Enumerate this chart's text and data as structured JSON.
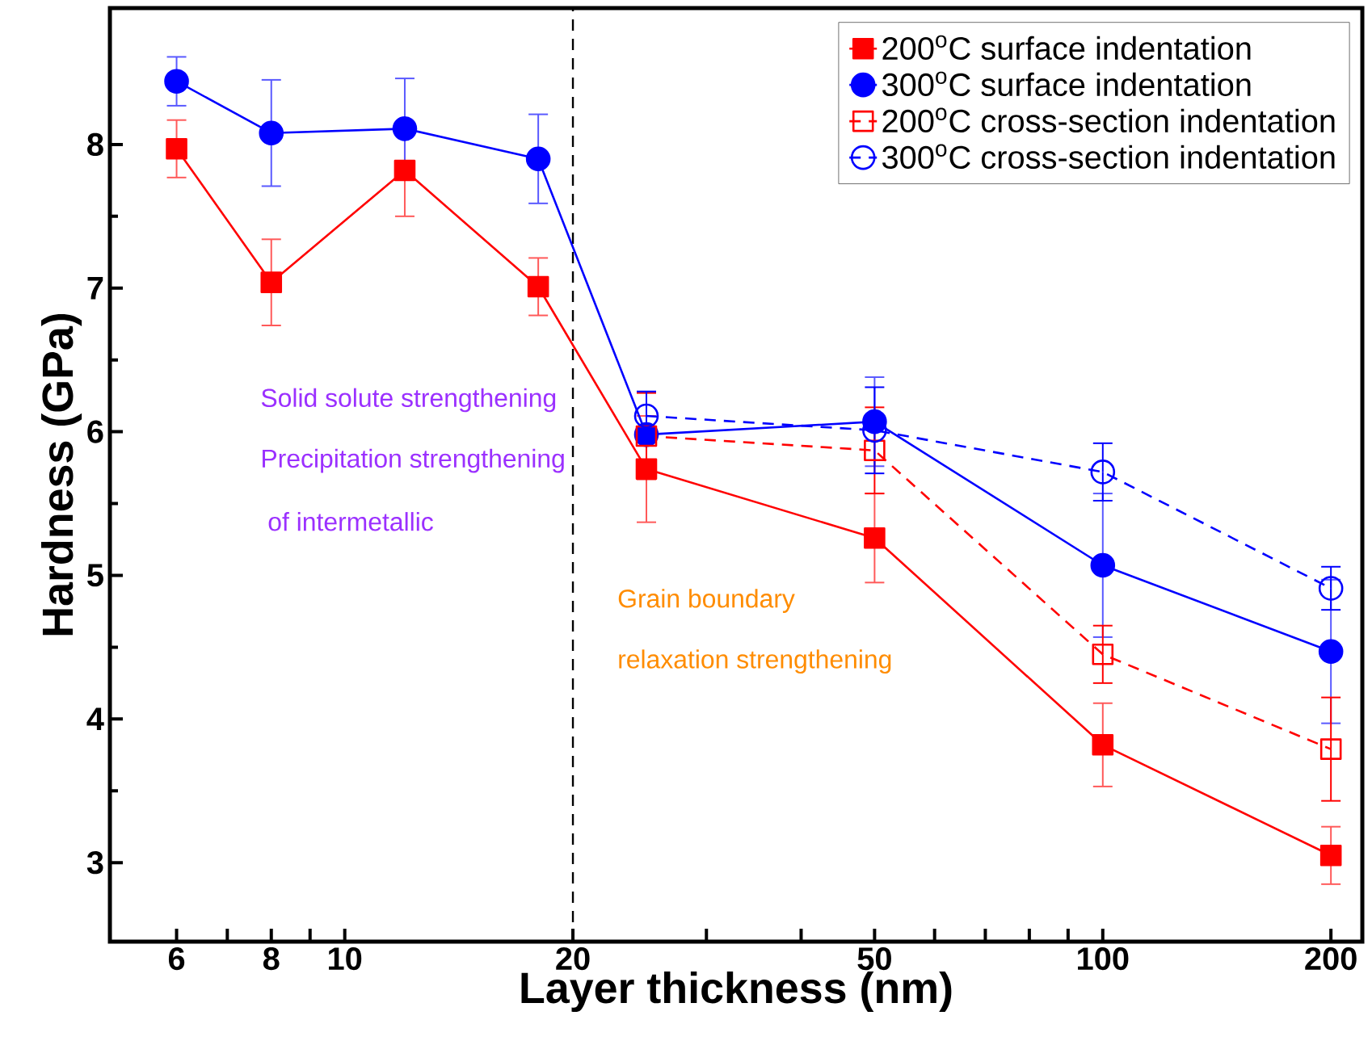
{
  "chart_data": {
    "type": "line",
    "xlabel": "Layer thickness (nm)",
    "ylabel": "Hardness (GPa)",
    "log": "x",
    "xlim": [
      4.9,
      220
    ],
    "ylim": [
      2.45,
      8.95
    ],
    "xticks": [
      6,
      {
        "value": 7,
        "label": null
      },
      8,
      {
        "value": 9,
        "label": null
      },
      10,
      20,
      {
        "value": 30,
        "label": null
      },
      {
        "value": 40,
        "label": null
      },
      50,
      {
        "value": 60,
        "label": null
      },
      {
        "value": 70,
        "label": null
      },
      {
        "value": 80,
        "label": null
      },
      {
        "value": 90,
        "label": null
      },
      100,
      200
    ],
    "yticks": [
      3,
      4,
      5,
      6,
      7,
      8
    ],
    "legend": "top right",
    "grid": false,
    "series": [
      {
        "name": "200$^{o}$C surface indentation",
        "color": "#ff0000",
        "marker": "square",
        "line_style": "solid",
        "x": [
          6,
          8,
          12,
          18,
          25,
          50,
          100,
          200
        ],
        "values": [
          7.97,
          7.04,
          7.82,
          7.01,
          5.74,
          5.26,
          3.82,
          3.05
        ],
        "errors": [
          0.2,
          0.3,
          0.32,
          0.2,
          0.37,
          0.31,
          0.29,
          0.2
        ]
      },
      {
        "name": "300$^{o}$C surface indentation",
        "color": "#0000ff",
        "marker": "circle",
        "line_style": "solid",
        "x": [
          6,
          8,
          12,
          18,
          25,
          50,
          100,
          200
        ],
        "values": [
          8.44,
          8.08,
          8.11,
          7.9,
          5.98,
          6.07,
          5.07,
          4.47
        ],
        "errors": [
          0.17,
          0.37,
          0.35,
          0.31,
          0.3,
          0.31,
          0.5,
          0.5
        ]
      },
      {
        "name": "200$^{o}$C cross-section indentation",
        "color": "#ff0000",
        "marker": "square",
        "line_style": "dashed",
        "x": [
          25,
          50,
          100,
          200
        ],
        "values": [
          5.97,
          5.87,
          4.45,
          3.79
        ],
        "errors": [
          0.3,
          0.3,
          0.2,
          0.36
        ]
      },
      {
        "name": "300$^{o}$C cross-section indentation",
        "color": "#0000ff",
        "marker": "circle",
        "line_style": "dashed",
        "x": [
          25,
          50,
          100,
          200
        ],
        "values": [
          6.11,
          6.01,
          5.72,
          4.91
        ],
        "errors": [
          0.17,
          0.3,
          0.2,
          0.15
        ]
      }
    ],
    "ref_lines": [
      {
        "axis": "x",
        "value": 20,
        "color": "#000000",
        "line_style": "dashed"
      }
    ],
    "annotations": [
      "Solid solute strengthening",
      "Precipitation strengthening",
      " of intermetallic",
      "Grain boundary",
      "relaxation strengthening"
    ]
  }
}
